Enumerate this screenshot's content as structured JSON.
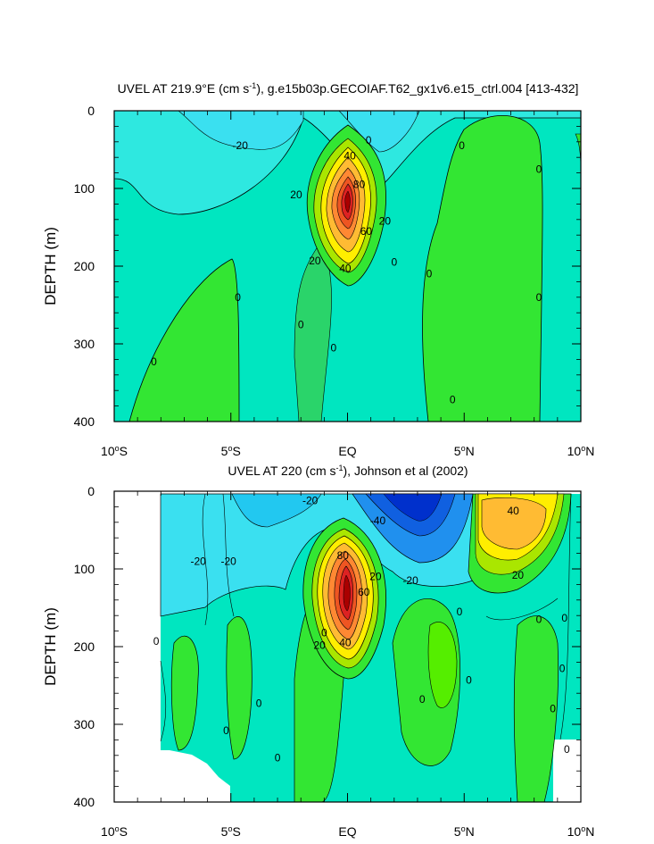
{
  "chart_data": [
    {
      "type": "contour",
      "title_main": "UVEL AT 219.9°E (cm s",
      "title_exp": "-1",
      "title_rest": "), g.e15b03p.GECOIAF.T62_gx1v6.e15_ctrl.004 [413-432]",
      "ylabel": "DEPTH (m)",
      "xlim": [
        -10,
        10
      ],
      "ylim": [
        400,
        0
      ],
      "x_ticks": [
        {
          "value": -10,
          "num": "10",
          "hemi": "S"
        },
        {
          "value": -5,
          "num": "5",
          "hemi": "S"
        },
        {
          "value": 0,
          "num": "EQ",
          "hemi": ""
        },
        {
          "value": 5,
          "num": "5",
          "hemi": "N"
        },
        {
          "value": 10,
          "num": "10",
          "hemi": "N"
        }
      ],
      "y_ticks": [
        "0",
        "100",
        "200",
        "300",
        "400"
      ],
      "y_tick_values": [
        0,
        100,
        200,
        300,
        400
      ],
      "contour_labels": [
        {
          "text": "-20",
          "lon": -4.6,
          "depth": 45
        },
        {
          "text": "0",
          "lon": 0.9,
          "depth": 38
        },
        {
          "text": "40",
          "lon": 0.1,
          "depth": 58
        },
        {
          "text": "80",
          "lon": 0.5,
          "depth": 95
        },
        {
          "text": "20",
          "lon": -2.2,
          "depth": 108
        },
        {
          "text": "20",
          "lon": 1.6,
          "depth": 142
        },
        {
          "text": "60",
          "lon": 0.8,
          "depth": 155
        },
        {
          "text": "20",
          "lon": -1.4,
          "depth": 193
        },
        {
          "text": "40",
          "lon": -0.1,
          "depth": 203
        },
        {
          "text": "0",
          "lon": 2.0,
          "depth": 195
        },
        {
          "text": "0",
          "lon": 4.9,
          "depth": 45
        },
        {
          "text": "0",
          "lon": 8.2,
          "depth": 75
        },
        {
          "text": "0",
          "lon": 3.5,
          "depth": 210
        },
        {
          "text": "0",
          "lon": -4.7,
          "depth": 240
        },
        {
          "text": "0",
          "lon": -8.3,
          "depth": 323
        },
        {
          "text": "0",
          "lon": -2.0,
          "depth": 275
        },
        {
          "text": "0",
          "lon": -0.6,
          "depth": 305
        },
        {
          "text": "0",
          "lon": 4.5,
          "depth": 372
        },
        {
          "text": "0",
          "lon": 8.2,
          "depth": 240
        }
      ]
    },
    {
      "type": "contour",
      "title_main": "UVEL AT 220 (cm s",
      "title_exp": "-1",
      "title_rest": "), Johnson et al (2002)",
      "ylabel": "DEPTH (m)",
      "xlim": [
        -10,
        10
      ],
      "ylim": [
        400,
        0
      ],
      "x_ticks": [
        {
          "value": -10,
          "num": "10",
          "hemi": "S"
        },
        {
          "value": -5,
          "num": "5",
          "hemi": "S"
        },
        {
          "value": 0,
          "num": "EQ",
          "hemi": ""
        },
        {
          "value": 5,
          "num": "5",
          "hemi": "N"
        },
        {
          "value": 10,
          "num": "10",
          "hemi": "N"
        }
      ],
      "y_ticks": [
        "0",
        "100",
        "200",
        "300",
        "400"
      ],
      "y_tick_values": [
        0,
        100,
        200,
        300,
        400
      ],
      "contour_labels": [
        {
          "text": "-20",
          "lon": -1.6,
          "depth": 12
        },
        {
          "text": "-40",
          "lon": 1.3,
          "depth": 38
        },
        {
          "text": "40",
          "lon": 7.1,
          "depth": 25
        },
        {
          "text": "80",
          "lon": -0.2,
          "depth": 83
        },
        {
          "text": "-20",
          "lon": -6.4,
          "depth": 90
        },
        {
          "text": "-20",
          "lon": -5.1,
          "depth": 90
        },
        {
          "text": "20",
          "lon": 1.2,
          "depth": 110
        },
        {
          "text": "-20",
          "lon": 2.7,
          "depth": 115
        },
        {
          "text": "60",
          "lon": 0.7,
          "depth": 130
        },
        {
          "text": "20",
          "lon": 7.3,
          "depth": 108
        },
        {
          "text": "0",
          "lon": 4.8,
          "depth": 155
        },
        {
          "text": "0",
          "lon": 8.2,
          "depth": 165
        },
        {
          "text": "0",
          "lon": 9.3,
          "depth": 163
        },
        {
          "text": "0",
          "lon": -1.0,
          "depth": 182
        },
        {
          "text": "20",
          "lon": -1.2,
          "depth": 198
        },
        {
          "text": "40",
          "lon": -0.1,
          "depth": 195
        },
        {
          "text": "0",
          "lon": -8.2,
          "depth": 193
        },
        {
          "text": "0",
          "lon": 5.2,
          "depth": 243
        },
        {
          "text": "0",
          "lon": 9.2,
          "depth": 228
        },
        {
          "text": "0",
          "lon": 3.2,
          "depth": 268
        },
        {
          "text": "0",
          "lon": -3.8,
          "depth": 273
        },
        {
          "text": "0",
          "lon": -5.2,
          "depth": 308
        },
        {
          "text": "0",
          "lon": 8.8,
          "depth": 280
        },
        {
          "text": "0",
          "lon": 9.4,
          "depth": 332
        },
        {
          "text": "0",
          "lon": -3.0,
          "depth": 343
        }
      ]
    }
  ]
}
